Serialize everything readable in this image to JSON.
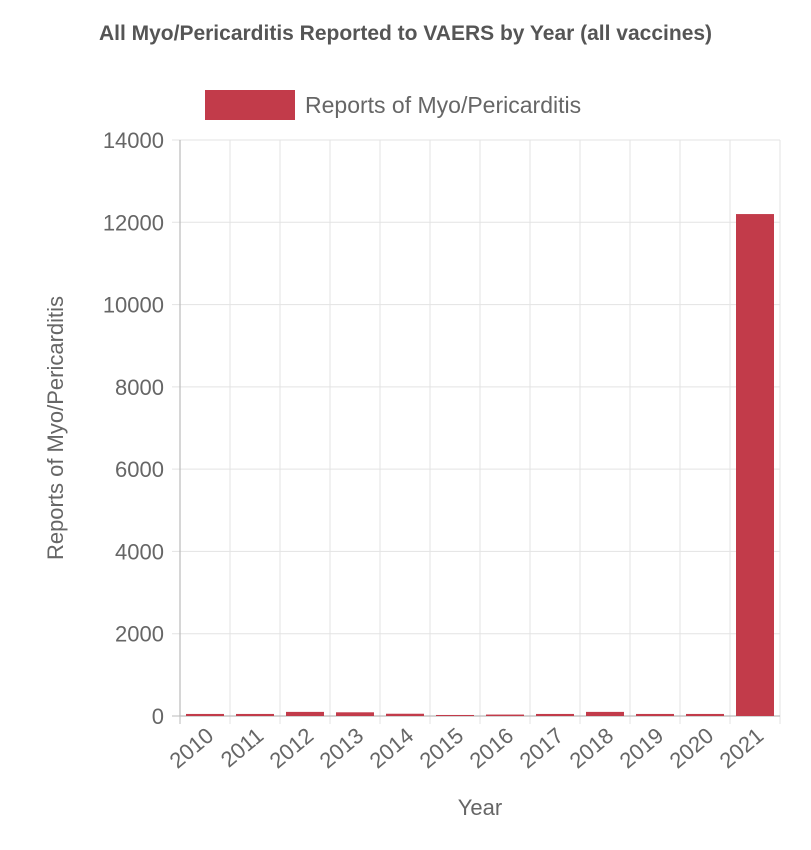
{
  "chart_data": {
    "type": "bar",
    "title": "All Myo/Pericarditis Reported to VAERS by Year (all vaccines)",
    "xlabel": "Year",
    "ylabel": "Reports of Myo/Pericarditis",
    "categories": [
      "2010",
      "2011",
      "2012",
      "2013",
      "2014",
      "2015",
      "2016",
      "2017",
      "2018",
      "2019",
      "2020",
      "2021"
    ],
    "series": [
      {
        "name": "Reports of Myo/Pericarditis",
        "color": "#c23b4a",
        "values": [
          50,
          50,
          100,
          90,
          55,
          25,
          35,
          50,
          100,
          50,
          50,
          12200
        ]
      }
    ],
    "ylim": [
      0,
      14000
    ],
    "yticks": [
      "0",
      "2000",
      "4000",
      "6000",
      "8000",
      "10000",
      "12000",
      "14000"
    ],
    "grid": true,
    "legend": "top"
  }
}
